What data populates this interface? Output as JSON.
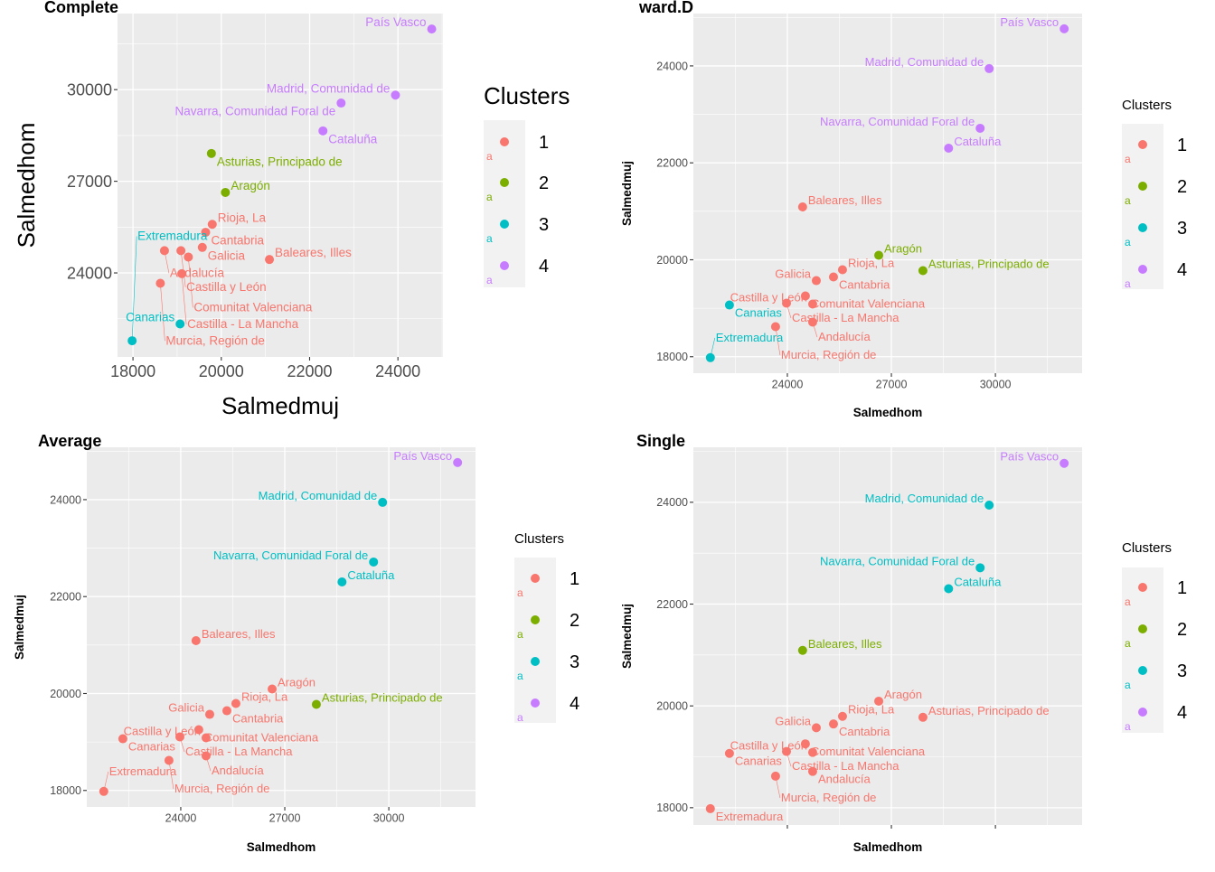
{
  "chart_data": {
    "type": "scatter",
    "regions": [
      "Andalucía",
      "Aragón",
      "Asturias, Principado de",
      "Baleares, Illes",
      "Canarias",
      "Cantabria",
      "Castilla - La Mancha",
      "Castilla y León",
      "Cataluña",
      "Comunitat Valenciana",
      "Extremadura",
      "Galicia",
      "Madrid, Comunidad de",
      "Murcia, Región de",
      "Navarra, Comunidad Foral de",
      "País Vasco",
      "Rioja, La"
    ],
    "Salmedhom": [
      24730,
      26635,
      27910,
      24440,
      22330,
      25330,
      23975,
      24730,
      28650,
      24520,
      21780,
      24835,
      29820,
      23660,
      29560,
      31983,
      25590
    ],
    "Salmedmuj": [
      18713,
      20093,
      19776,
      21090,
      19067,
      19645,
      19105,
      19086,
      22302,
      19254,
      17981,
      19570,
      23944,
      18620,
      22713,
      24765,
      19795
    ],
    "cluster_colors": {
      "1": "#F8766D",
      "2": "#7CAE00",
      "3": "#00BFC4",
      "4": "#C77CFF"
    },
    "legend": {
      "title": "Clusters",
      "labels": [
        "1",
        "2",
        "3",
        "4"
      ],
      "key_glyph": "a"
    },
    "panels": [
      {
        "title": "Complete",
        "xlabel": "Salmedmuj",
        "ylabel": "Salmedhom",
        "x_var": "Salmedmuj",
        "y_var": "Salmedhom",
        "xlim": [
          17650,
          25020
        ],
        "ylim": [
          21250,
          32490
        ],
        "xticks": [
          "18000",
          "20000",
          "22000",
          "24000"
        ],
        "yticks": [
          "24000",
          "27000",
          "30000"
        ],
        "clusters": [
          1,
          2,
          2,
          1,
          3,
          1,
          1,
          1,
          4,
          1,
          3,
          1,
          4,
          1,
          4,
          4,
          1
        ]
      },
      {
        "title": "ward.D",
        "xlabel": "Salmedhom",
        "ylabel": "Salmedmuj",
        "x_var": "Salmedhom",
        "y_var": "Salmedmuj",
        "xlim": [
          21290,
          32500
        ],
        "ylim": [
          17660,
          25080
        ],
        "xticks": [
          "24000",
          "27000",
          "30000"
        ],
        "yticks": [
          "18000",
          "20000",
          "22000",
          "24000"
        ],
        "clusters": [
          1,
          2,
          2,
          1,
          3,
          1,
          1,
          1,
          4,
          1,
          3,
          1,
          4,
          1,
          4,
          4,
          1
        ]
      },
      {
        "title": "Average",
        "xlabel": "Salmedhom",
        "ylabel": "Salmedmuj",
        "x_var": "Salmedhom",
        "y_var": "Salmedmuj",
        "xlim": [
          21290,
          32500
        ],
        "ylim": [
          17660,
          25080
        ],
        "xticks": [
          "24000",
          "27000",
          "30000"
        ],
        "yticks": [
          "18000",
          "20000",
          "22000",
          "24000"
        ],
        "clusters": [
          1,
          1,
          2,
          1,
          1,
          1,
          1,
          1,
          3,
          1,
          1,
          1,
          3,
          1,
          3,
          4,
          1
        ]
      },
      {
        "title": "Single",
        "xlabel": "Salmedhom",
        "ylabel": "Salmedmuj",
        "x_var": "Salmedhom",
        "y_var": "Salmedmuj",
        "xlim": [
          21290,
          32500
        ],
        "ylim": [
          17660,
          25080
        ],
        "xticks": [
          "",
          "",
          ""
        ],
        "yticks": [
          "18000",
          "20000",
          "22000",
          "24000"
        ],
        "clusters": [
          1,
          1,
          1,
          2,
          1,
          1,
          1,
          1,
          3,
          1,
          1,
          1,
          3,
          1,
          3,
          4,
          1
        ]
      }
    ]
  }
}
